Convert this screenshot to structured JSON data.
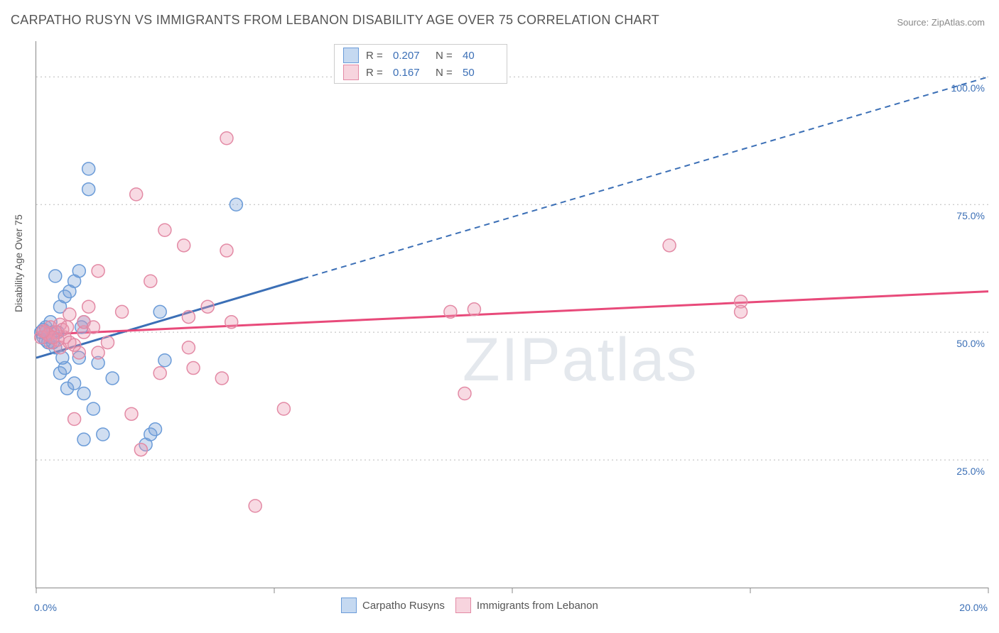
{
  "title": "CARPATHO RUSYN VS IMMIGRANTS FROM LEBANON DISABILITY AGE OVER 75 CORRELATION CHART",
  "source": "Source: ZipAtlas.com",
  "y_axis_label": "Disability Age Over 75",
  "watermark": "ZIPatlas",
  "chart": {
    "type": "scatter",
    "xlim": [
      0,
      20
    ],
    "ylim": [
      0,
      107
    ],
    "x_ticks": [
      0,
      5,
      10,
      15,
      20
    ],
    "x_tick_labels": [
      "0.0%",
      "",
      "",
      "",
      "20.0%"
    ],
    "y_ticks": [
      25,
      50,
      75,
      100
    ],
    "y_tick_labels": [
      "25.0%",
      "50.0%",
      "75.0%",
      "100.0%"
    ],
    "grid_color": "#bbbbbb",
    "background": "#ffffff",
    "series": [
      {
        "name": "Carpatho Rusyns",
        "color_fill": "rgba(120,160,215,0.35)",
        "color_stroke": "#6a9bd8",
        "swatch_fill": "#c5d9f1",
        "swatch_border": "#6a9bd8",
        "line_color": "#3b6fb6",
        "r_value": "0.207",
        "n_value": "40",
        "regression": {
          "x1": 0,
          "y1": 45,
          "x2": 5.6,
          "y2": 60.5,
          "solid_to_x": 5.6,
          "dash_to_x": 20,
          "dash_to_y": 100
        },
        "points": [
          [
            0.1,
            50
          ],
          [
            0.15,
            49
          ],
          [
            0.2,
            51
          ],
          [
            0.25,
            48
          ],
          [
            0.3,
            52
          ],
          [
            0.3,
            49
          ],
          [
            0.35,
            50
          ],
          [
            0.4,
            47
          ],
          [
            0.4,
            61
          ],
          [
            0.45,
            50
          ],
          [
            0.5,
            42
          ],
          [
            0.5,
            55
          ],
          [
            0.6,
            43
          ],
          [
            0.6,
            57
          ],
          [
            0.65,
            39
          ],
          [
            0.7,
            58
          ],
          [
            0.8,
            40
          ],
          [
            0.8,
            60
          ],
          [
            0.9,
            45
          ],
          [
            0.9,
            62
          ],
          [
            1.0,
            38
          ],
          [
            1.0,
            52
          ],
          [
            1.1,
            82
          ],
          [
            1.1,
            78
          ],
          [
            1.2,
            35
          ],
          [
            1.3,
            44
          ],
          [
            1.4,
            30
          ],
          [
            1.6,
            41
          ],
          [
            2.3,
            28
          ],
          [
            2.4,
            30
          ],
          [
            2.5,
            31
          ],
          [
            2.6,
            54
          ],
          [
            2.7,
            44.5
          ],
          [
            4.2,
            75
          ],
          [
            1.0,
            29
          ],
          [
            0.55,
            45
          ],
          [
            0.2,
            48.5
          ],
          [
            0.15,
            50.5
          ],
          [
            0.35,
            48
          ],
          [
            0.95,
            51
          ]
        ]
      },
      {
        "name": "Immigrants from Lebanon",
        "color_fill": "rgba(235,150,175,0.35)",
        "color_stroke": "#e38aa5",
        "swatch_fill": "#f7d4de",
        "swatch_border": "#e38aa5",
        "line_color": "#e84a7a",
        "r_value": "0.167",
        "n_value": "50",
        "regression": {
          "x1": 0,
          "y1": 49.5,
          "x2": 20,
          "y2": 58,
          "solid_to_x": 20
        },
        "points": [
          [
            0.1,
            49
          ],
          [
            0.2,
            50
          ],
          [
            0.3,
            48
          ],
          [
            0.3,
            51
          ],
          [
            0.4,
            50
          ],
          [
            0.5,
            47
          ],
          [
            0.5,
            51.5
          ],
          [
            0.6,
            49
          ],
          [
            0.7,
            48
          ],
          [
            0.7,
            53.5
          ],
          [
            0.8,
            47.5
          ],
          [
            0.8,
            33
          ],
          [
            0.9,
            46
          ],
          [
            1.0,
            50
          ],
          [
            1.0,
            52
          ],
          [
            1.1,
            55
          ],
          [
            1.2,
            51
          ],
          [
            1.3,
            46
          ],
          [
            1.3,
            62
          ],
          [
            1.5,
            48
          ],
          [
            1.8,
            54
          ],
          [
            2.0,
            34
          ],
          [
            2.1,
            77
          ],
          [
            2.2,
            27
          ],
          [
            2.4,
            60
          ],
          [
            2.6,
            42
          ],
          [
            2.7,
            70
          ],
          [
            3.1,
            67
          ],
          [
            3.2,
            47
          ],
          [
            3.2,
            53
          ],
          [
            3.3,
            43
          ],
          [
            3.6,
            55
          ],
          [
            3.9,
            41
          ],
          [
            4.0,
            88
          ],
          [
            4.0,
            66
          ],
          [
            4.1,
            52
          ],
          [
            4.6,
            16
          ],
          [
            5.2,
            35
          ],
          [
            8.7,
            54
          ],
          [
            9.0,
            38
          ],
          [
            9.2,
            54.5
          ],
          [
            13.3,
            67
          ],
          [
            14.8,
            56
          ],
          [
            14.8,
            54
          ],
          [
            0.25,
            49.5
          ],
          [
            0.45,
            48.5
          ],
          [
            0.55,
            50.5
          ],
          [
            0.35,
            49
          ],
          [
            0.15,
            50.2
          ],
          [
            0.65,
            51
          ]
        ]
      }
    ]
  },
  "legend_bottom": [
    {
      "label": "Carpatho Rusyns"
    },
    {
      "label": "Immigrants from Lebanon"
    }
  ]
}
